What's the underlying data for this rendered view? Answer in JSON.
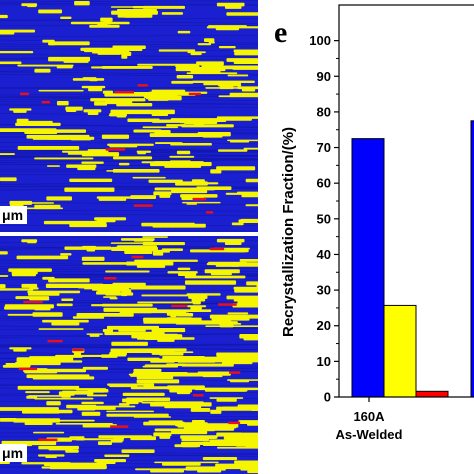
{
  "panels": {
    "top_map": {
      "scale_label": "μm"
    },
    "bottom_map": {
      "scale_label": "μm"
    }
  },
  "colors": {
    "map_background": "#1a1fd0",
    "recrystallized": "#f5f500",
    "other": "#e8101a",
    "bar_blue": "#0000ff",
    "bar_yellow": "#ffff00",
    "bar_red": "#ff0000"
  },
  "chart_data": {
    "type": "bar",
    "panel_letter": "e",
    "ylabel": "Recrystallization Fraction/(%)",
    "ylim": [
      0,
      110
    ],
    "yticks": [
      0,
      10,
      20,
      30,
      40,
      50,
      60,
      70,
      80,
      90,
      100
    ],
    "categories": [
      {
        "line1": "160A",
        "line2": "As-Welded"
      }
    ],
    "series": [
      {
        "color": "#0000ff",
        "values": [
          72.5
        ]
      },
      {
        "color": "#ffff00",
        "values": [
          25.7
        ]
      },
      {
        "color": "#ff0000",
        "values": [
          1.6
        ]
      }
    ],
    "partial_bar": {
      "color": "#0000ff",
      "value": 77.5
    }
  }
}
